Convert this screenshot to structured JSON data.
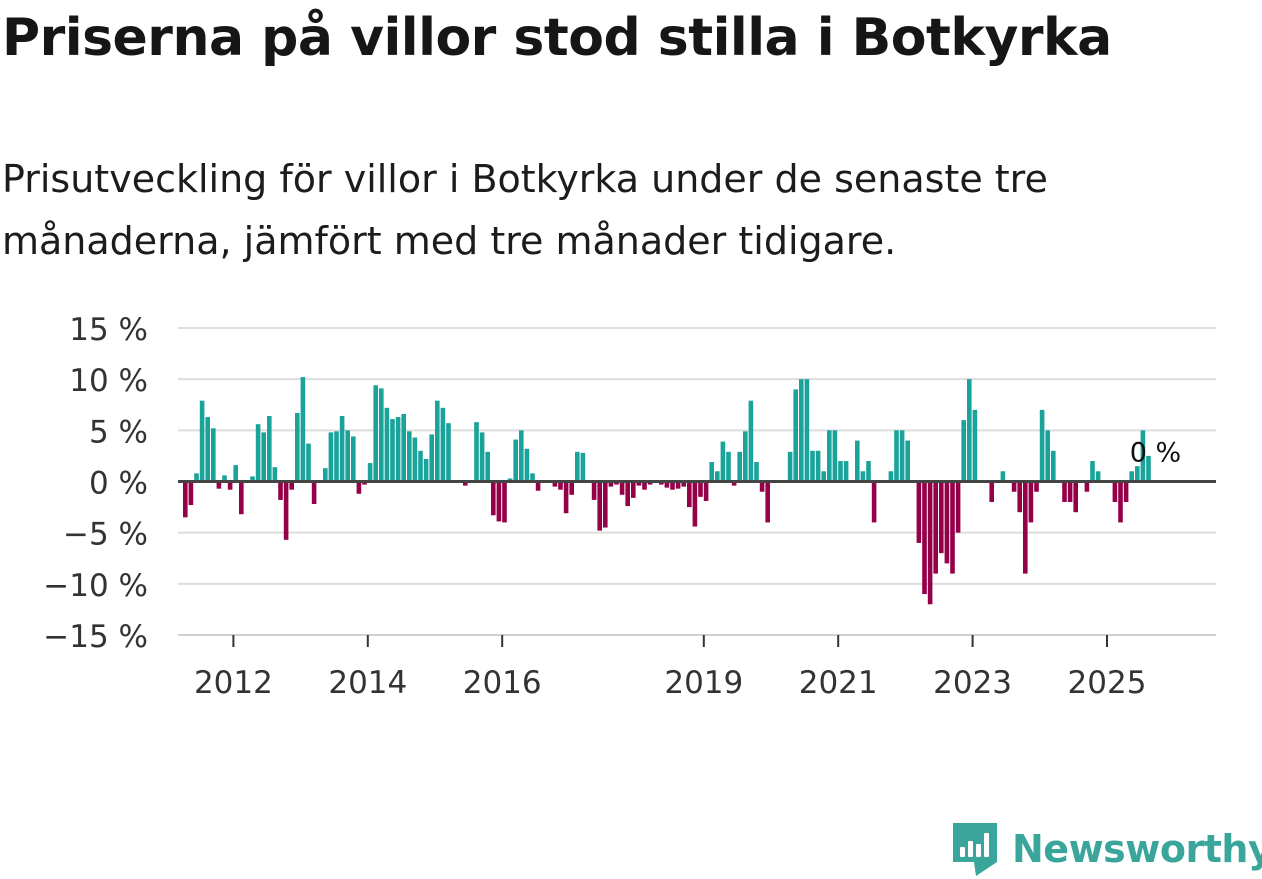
{
  "header": {
    "title": "Priserna på villor stod stilla i Botkyrka",
    "subtitle": "Prisutveckling för villor i Botkyrka under de senaste tre månaderna, jämfört med tre månader tidigare."
  },
  "brand": {
    "name": "Newsworthy",
    "icon": "newsworthy-logo-icon",
    "color": "#3aa69b"
  },
  "colors": {
    "positive": "#1aa39a",
    "negative": "#950048",
    "grid": "#dddddd",
    "zero": "#444444"
  },
  "chart_data": {
    "type": "bar",
    "title": "Priserna på villor stod stilla i Botkyrka",
    "xlabel": "",
    "ylabel": "",
    "ylim": [
      -15,
      15
    ],
    "y_ticks": [
      15,
      10,
      5,
      0,
      -5,
      -10,
      -15
    ],
    "y_tick_labels": [
      "15 %",
      "10 %",
      "5 %",
      "0 %",
      "−5 %",
      "−10 %",
      "−15 %"
    ],
    "x_tick_labels": [
      {
        "label": "2012",
        "year": 2012
      },
      {
        "label": "2014",
        "year": 2014
      },
      {
        "label": "2016",
        "year": 2016
      },
      {
        "label": "2019",
        "year": 2019
      },
      {
        "label": "2021",
        "year": 2021
      },
      {
        "label": "2023",
        "year": 2023
      },
      {
        "label": "2025",
        "year": 2025
      }
    ],
    "x_start_year": 2011.25,
    "last_value_label": "0 %",
    "grid": true,
    "values": [
      -3.5,
      -2.3,
      0.8,
      7.9,
      6.3,
      5.2,
      -0.7,
      0.6,
      -0.8,
      1.6,
      -3.2,
      0,
      0.5,
      5.6,
      4.8,
      6.4,
      1.4,
      -1.8,
      -5.7,
      -0.8,
      6.7,
      10.2,
      3.7,
      -2.2,
      0,
      1.3,
      4.8,
      4.9,
      6.4,
      5.0,
      4.4,
      -1.2,
      -0.3,
      1.8,
      9.4,
      9.1,
      7.2,
      6.1,
      6.3,
      6.6,
      4.9,
      4.3,
      3.0,
      2.2,
      4.6,
      7.9,
      7.2,
      5.7,
      0,
      0,
      -0.4,
      0,
      5.8,
      4.8,
      2.9,
      -3.3,
      -3.9,
      -4.0,
      0.3,
      4.1,
      5.0,
      3.2,
      0.8,
      -0.9,
      0,
      0,
      -0.5,
      -0.8,
      -3.1,
      -1.3,
      2.9,
      2.8,
      0,
      -1.8,
      -4.8,
      -4.5,
      -0.5,
      -0.3,
      -1.3,
      -2.4,
      -1.6,
      -0.4,
      -0.8,
      -0.3,
      0,
      -0.3,
      -0.6,
      -0.8,
      -0.7,
      -0.5,
      -2.5,
      -4.4,
      -1.5,
      -1.9,
      1.9,
      1.0,
      3.9,
      2.9,
      -0.4,
      2.9,
      4.9,
      7.9,
      1.9,
      -1.0,
      -4.0,
      0,
      0,
      0,
      2.9,
      9.0,
      10.0,
      10.0,
      3.0,
      3.0,
      1.0,
      5.0,
      5.0,
      2.0,
      2.0,
      0,
      4.0,
      1.0,
      2.0,
      -4.0,
      0,
      0,
      1.0,
      5.0,
      5.0,
      4.0,
      0,
      -6.0,
      -11.0,
      -12.0,
      -9.0,
      -7.0,
      -8.0,
      -9.0,
      -5.0,
      6.0,
      10.0,
      7.0,
      0,
      0,
      -2.0,
      0,
      1.0,
      0,
      -1.0,
      -3.0,
      -9.0,
      -4.0,
      -1.0,
      7.0,
      5.0,
      3.0,
      0,
      -2.0,
      -2.0,
      -3.0,
      0,
      -1.0,
      2.0,
      1.0,
      0,
      0,
      -2.0,
      -4.0,
      -2.0,
      1.0,
      1.5,
      5.0,
      2.5,
      0
    ]
  }
}
